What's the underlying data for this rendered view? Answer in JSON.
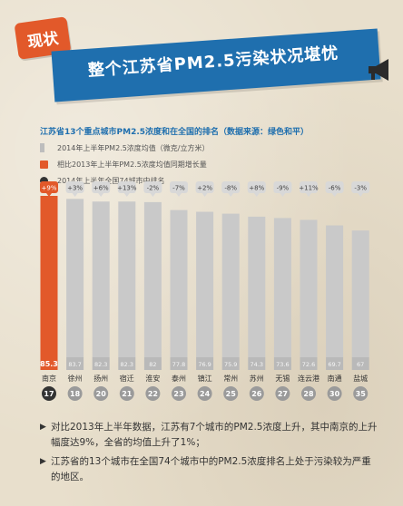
{
  "header": {
    "badge": "现状",
    "title": "整个江苏省PM2.5污染状况堪忧"
  },
  "subtitle": "江苏省13个重点城市PM2.5浓度和在全国的排名（数据来源：绿色和平）",
  "legend": {
    "concentration": "2014年上半年PM2.5浓度均值（微克/立方米）",
    "growth": "相比2013年上半年PM2.5浓度均值同期增长量",
    "rank": "2014年上半年全国74城市中排名"
  },
  "colors": {
    "highlight": "#e2592a",
    "bar": "#c9c9c9",
    "banner": "#1f6fae",
    "rank_highlight": "#333333",
    "rank": "#9a9a9a"
  },
  "chart_data": {
    "type": "bar",
    "categories": [
      "南京",
      "徐州",
      "扬州",
      "宿迁",
      "淮安",
      "泰州",
      "镇江",
      "常州",
      "苏州",
      "无锡",
      "连云港",
      "南通",
      "盐城"
    ],
    "values": [
      85.3,
      83.7,
      82.3,
      82.3,
      82,
      77.8,
      76.9,
      75.9,
      74.3,
      73.6,
      72.6,
      69.7,
      67
    ],
    "changes": [
      "+9%",
      "+3%",
      "+6%",
      "+13%",
      "-2%",
      "-7%",
      "+2%",
      "-8%",
      "+8%",
      "-9%",
      "+11%",
      "-6%",
      "-3%"
    ],
    "ranks": [
      17,
      18,
      20,
      21,
      22,
      23,
      24,
      25,
      26,
      27,
      28,
      30,
      35
    ],
    "highlight_index": 0
  },
  "notes": [
    "对比2013年上半年数据，江苏有7个城市的PM2.5浓度上升，其中南京的上升幅度达9%，全省的均值上升了1%；",
    "江苏省的13个城市在全国74个城市中的PM2.5浓度排名上处于污染较为严重的地区。"
  ]
}
